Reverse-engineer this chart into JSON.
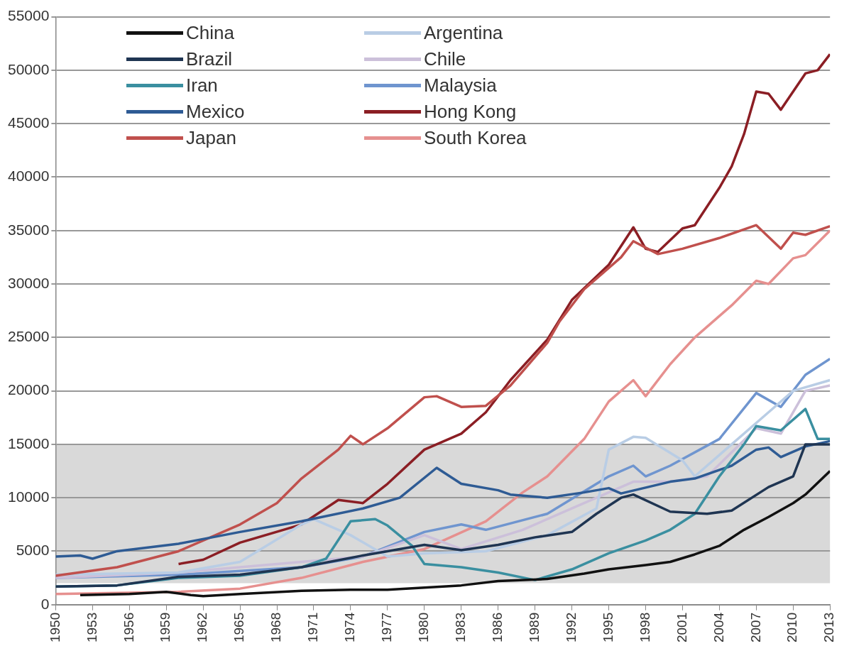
{
  "chart_data": {
    "type": "line",
    "xlim": [
      1950,
      2013
    ],
    "xticks": [
      1950,
      1953,
      1956,
      1959,
      1962,
      1965,
      1968,
      1971,
      1974,
      1977,
      1980,
      1983,
      1986,
      1989,
      1992,
      1995,
      1998,
      2001,
      2004,
      2007,
      2010,
      2013
    ],
    "ylim": [
      0,
      55000
    ],
    "yticks": [
      0,
      5000,
      10000,
      15000,
      20000,
      25000,
      30000,
      35000,
      40000,
      45000,
      50000,
      55000
    ],
    "grid": "y",
    "legend": "top left",
    "marker": "none",
    "line_style": "solid",
    "bands": [
      {
        "axis": "y",
        "from": 2000,
        "to": 15000,
        "color": "#d9d9d9"
      }
    ],
    "series": [
      {
        "name": "China",
        "color": "#111111",
        "x": [
          1952,
          1956,
          1959,
          1961,
          1962,
          1965,
          1970,
          1974,
          1977,
          1980,
          1983,
          1986,
          1990,
          1993,
          1995,
          1998,
          2000,
          2002,
          2004,
          2006,
          2008,
          2010,
          2011,
          2013
        ],
        "values": [
          900,
          1000,
          1200,
          900,
          800,
          1000,
          1300,
          1400,
          1400,
          1600,
          1800,
          2200,
          2400,
          2900,
          3300,
          3700,
          4000,
          4700,
          5500,
          7000,
          8200,
          9500,
          10300,
          12500
        ]
      },
      {
        "name": "Brazil",
        "color": "#1f3552",
        "x": [
          1950,
          1955,
          1960,
          1965,
          1970,
          1975,
          1980,
          1983,
          1986,
          1989,
          1992,
          1994,
          1996,
          1997,
          2000,
          2003,
          2005,
          2008,
          2010,
          2011,
          2013
        ],
        "values": [
          1700,
          1800,
          2600,
          2800,
          3500,
          4600,
          5600,
          5100,
          5600,
          6300,
          6800,
          8500,
          10000,
          10300,
          8700,
          8500,
          8800,
          11000,
          12000,
          15000,
          15000
        ]
      },
      {
        "name": "Iran",
        "color": "#3a8fa0",
        "x": [
          1950,
          1955,
          1960,
          1965,
          1970,
          1972,
          1974,
          1976,
          1977,
          1979,
          1980,
          1983,
          1986,
          1989,
          1992,
          1995,
          1998,
          2000,
          2002,
          2004,
          2006,
          2007,
          2009,
          2011,
          2012,
          2013
        ],
        "values": [
          1700,
          1800,
          2500,
          2700,
          3500,
          4300,
          7800,
          8000,
          7400,
          5500,
          3800,
          3500,
          3000,
          2300,
          3300,
          4800,
          6000,
          7000,
          8500,
          12000,
          15000,
          16700,
          16300,
          18300,
          15500,
          15500
        ]
      },
      {
        "name": "Mexico",
        "color": "#2e5b94",
        "x": [
          1950,
          1952,
          1953,
          1955,
          1960,
          1965,
          1970,
          1975,
          1978,
          1981,
          1983,
          1986,
          1987,
          1990,
          1993,
          1995,
          1996,
          2000,
          2002,
          2005,
          2007,
          2008,
          2009,
          2011,
          2013
        ],
        "values": [
          4500,
          4600,
          4300,
          5000,
          5700,
          6800,
          7800,
          9000,
          10000,
          12800,
          11300,
          10700,
          10300,
          10000,
          10500,
          10900,
          10400,
          11500,
          11800,
          13000,
          14500,
          14700,
          13800,
          14800,
          15300
        ]
      },
      {
        "name": "Japan",
        "color": "#c0504d",
        "x": [
          1950,
          1955,
          1960,
          1965,
          1968,
          1970,
          1973,
          1974,
          1975,
          1977,
          1980,
          1981,
          1983,
          1985,
          1987,
          1990,
          1991,
          1993,
          1996,
          1997,
          1999,
          2001,
          2004,
          2007,
          2009,
          2010,
          2011,
          2013
        ],
        "values": [
          2700,
          3500,
          5000,
          7500,
          9500,
          11800,
          14500,
          15800,
          15000,
          16500,
          19400,
          19500,
          18500,
          18600,
          20500,
          24500,
          26500,
          29500,
          32500,
          34000,
          32800,
          33300,
          34300,
          35500,
          33300,
          34800,
          34600,
          35400
        ]
      },
      {
        "name": "Argentina",
        "color": "#b9cde5",
        "x": [
          1950,
          1955,
          1960,
          1965,
          1970,
          1971,
          1974,
          1977,
          1980,
          1985,
          1990,
          1994,
          1995,
          1997,
          1998,
          2001,
          2002,
          2005,
          2008,
          2010,
          2013
        ],
        "values": [
          2800,
          2900,
          3000,
          4000,
          7500,
          8000,
          6500,
          4500,
          4800,
          5000,
          6500,
          9000,
          14500,
          15700,
          15600,
          13500,
          12000,
          15000,
          18000,
          20000,
          21000
        ]
      },
      {
        "name": "Chile",
        "color": "#ccc0da",
        "x": [
          1950,
          1960,
          1970,
          1975,
          1980,
          1983,
          1988,
          1992,
          1997,
          2000,
          2003,
          2007,
          2009,
          2011,
          2013
        ],
        "values": [
          2500,
          3000,
          4000,
          4500,
          6500,
          5200,
          7000,
          9000,
          11500,
          11500,
          12000,
          16500,
          16000,
          20000,
          20500
        ]
      },
      {
        "name": "Malaysia",
        "color": "#6f95cf",
        "x": [
          1950,
          1960,
          1970,
          1975,
          1980,
          1983,
          1985,
          1990,
          1995,
          1997,
          1998,
          2000,
          2004,
          2007,
          2009,
          2011,
          2013
        ],
        "values": [
          2500,
          2800,
          3500,
          4500,
          6800,
          7500,
          7000,
          8500,
          12000,
          13000,
          12000,
          13000,
          15500,
          19800,
          18500,
          21500,
          23000
        ]
      },
      {
        "name": "Hong Kong",
        "color": "#8b1e24",
        "x": [
          1960,
          1962,
          1965,
          1970,
          1973,
          1975,
          1977,
          1980,
          1983,
          1985,
          1987,
          1990,
          1992,
          1995,
          1997,
          1998,
          1999,
          2001,
          2002,
          2004,
          2005,
          2006,
          2007,
          2008,
          2009,
          2011,
          2012,
          2013
        ],
        "values": [
          3800,
          4200,
          5800,
          7500,
          9800,
          9500,
          11300,
          14500,
          16000,
          18000,
          21000,
          24800,
          28500,
          31800,
          35300,
          33300,
          33000,
          35200,
          35500,
          39000,
          41000,
          44000,
          48000,
          47800,
          46300,
          49700,
          50000,
          51500
        ]
      },
      {
        "name": "South Korea",
        "color": "#e6908f",
        "x": [
          1950,
          1955,
          1960,
          1965,
          1970,
          1975,
          1980,
          1985,
          1988,
          1990,
          1993,
          1995,
          1997,
          1998,
          2000,
          2002,
          2005,
          2007,
          2008,
          2010,
          2011,
          2013
        ],
        "values": [
          1000,
          1100,
          1200,
          1500,
          2500,
          4000,
          5200,
          7800,
          10500,
          12000,
          15500,
          19000,
          21000,
          19500,
          22500,
          25000,
          28000,
          30300,
          30000,
          32400,
          32700,
          35000
        ]
      }
    ]
  }
}
